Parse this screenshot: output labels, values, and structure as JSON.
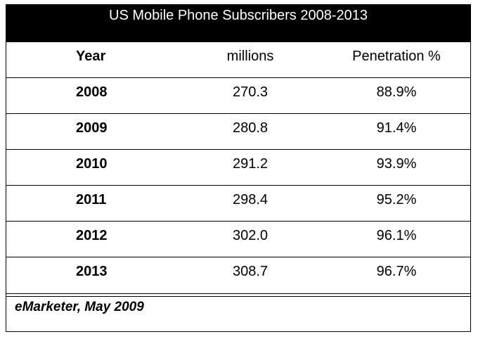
{
  "chart_data": {
    "type": "table",
    "title": "US Mobile Phone Subscribers 2008-2013",
    "columns": [
      "Year",
      "millions",
      "Penetration %"
    ],
    "rows": [
      {
        "year": "2008",
        "millions": "270.3",
        "penetration": "88.9%"
      },
      {
        "year": "2009",
        "millions": "280.8",
        "penetration": "91.4%"
      },
      {
        "year": "2010",
        "millions": "291.2",
        "penetration": "93.9%"
      },
      {
        "year": "2011",
        "millions": "298.4",
        "penetration": "95.2%"
      },
      {
        "year": "2012",
        "millions": "302.0",
        "penetration": "96.1%"
      },
      {
        "year": "2013",
        "millions": "308.7",
        "penetration": "96.7%"
      }
    ],
    "source": "eMarketer, May 2009"
  }
}
